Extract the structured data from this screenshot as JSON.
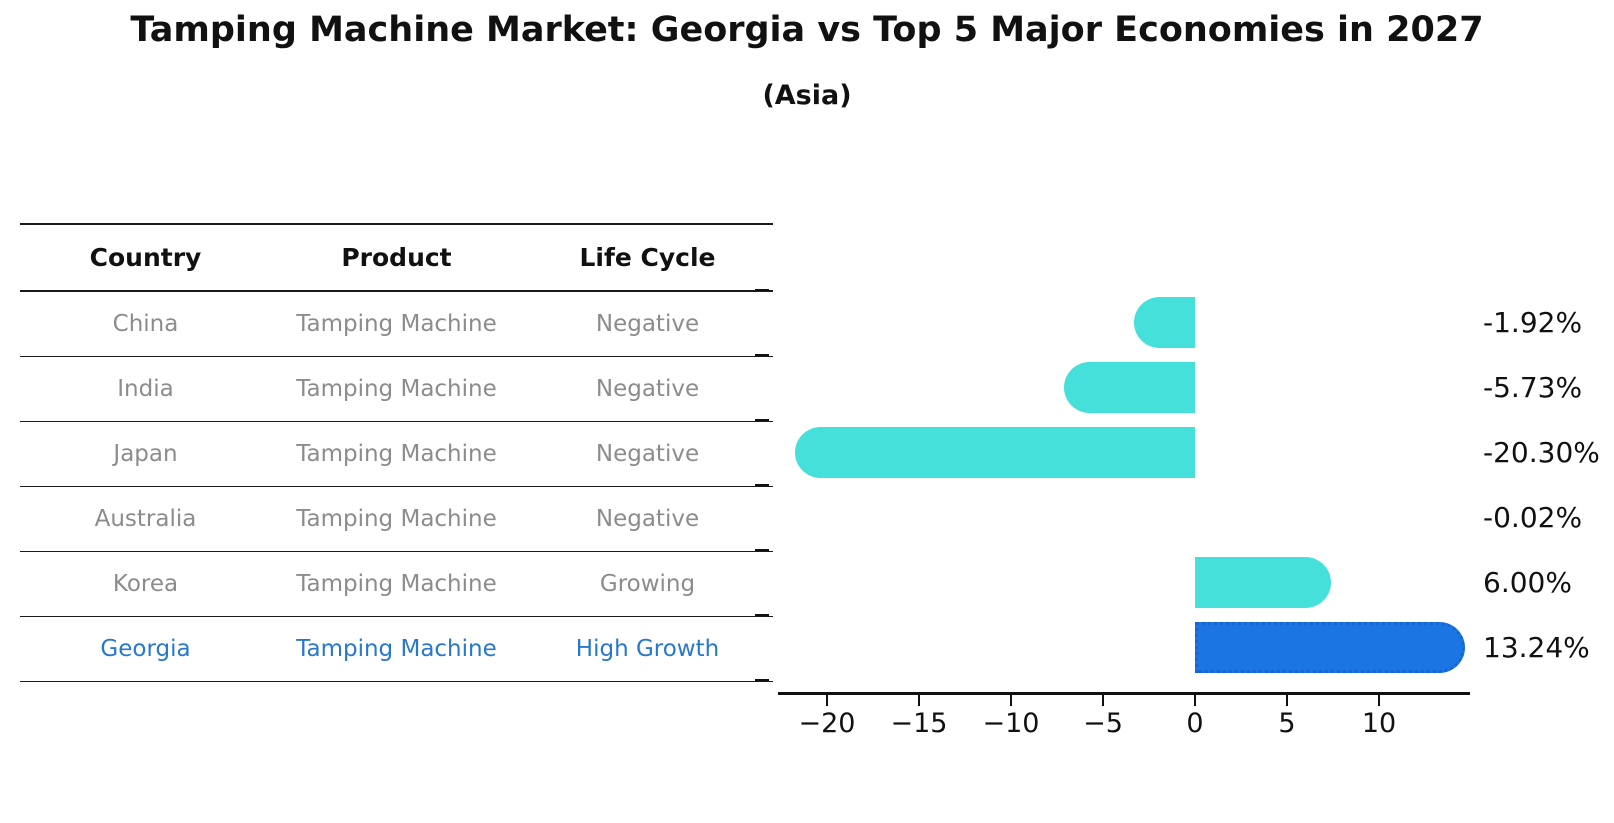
{
  "header": {
    "title": "Tamping Machine Market: Georgia vs Top 5 Major Economies in 2027",
    "subtitle": "(Asia)"
  },
  "table": {
    "headers": [
      "Country",
      "Product",
      "Life Cycle"
    ],
    "rows": [
      {
        "country": "China",
        "product": "Tamping Machine",
        "life_cycle": "Negative"
      },
      {
        "country": "India",
        "product": "Tamping Machine",
        "life_cycle": "Negative"
      },
      {
        "country": "Japan",
        "product": "Tamping Machine",
        "life_cycle": "Negative"
      },
      {
        "country": "Australia",
        "product": "Tamping Machine",
        "life_cycle": "Negative"
      },
      {
        "country": "Korea",
        "product": "Tamping Machine",
        "life_cycle": "Growing"
      },
      {
        "country": "Georgia",
        "product": "Tamping Machine",
        "life_cycle": "High Growth"
      }
    ],
    "text_color": "#8C8C8C",
    "highlight_text_color": "#2878CB"
  },
  "chart_data": {
    "type": "bar",
    "orientation": "horizontal",
    "title": "Tamping Machine Market: Georgia vs Top 5 Major Economies in 2027",
    "subtitle": "(Asia)",
    "categories": [
      "China",
      "India",
      "Japan",
      "Australia",
      "Korea",
      "Georgia"
    ],
    "values": [
      -1.92,
      -5.73,
      -20.3,
      -0.02,
      6.0,
      13.24
    ],
    "value_labels": [
      "-1.92%",
      "-5.73%",
      "-20.30%",
      "-0.02%",
      "6.00%",
      "13.24%"
    ],
    "xticks": [
      -20,
      -15,
      -10,
      -5,
      0,
      5,
      10
    ],
    "xtick_labels": [
      "−20",
      "−15",
      "−10",
      "−5",
      "0",
      "5",
      "10"
    ],
    "xlim": [
      -22.7,
      15.0
    ],
    "grid": false,
    "legend": "none",
    "bar_color": "#45E0DA",
    "highlight_index": 5,
    "highlight_bar_color": "#1B76E3",
    "highlight_border_color": "#1465D6",
    "highlight_border_style": "dotted"
  }
}
